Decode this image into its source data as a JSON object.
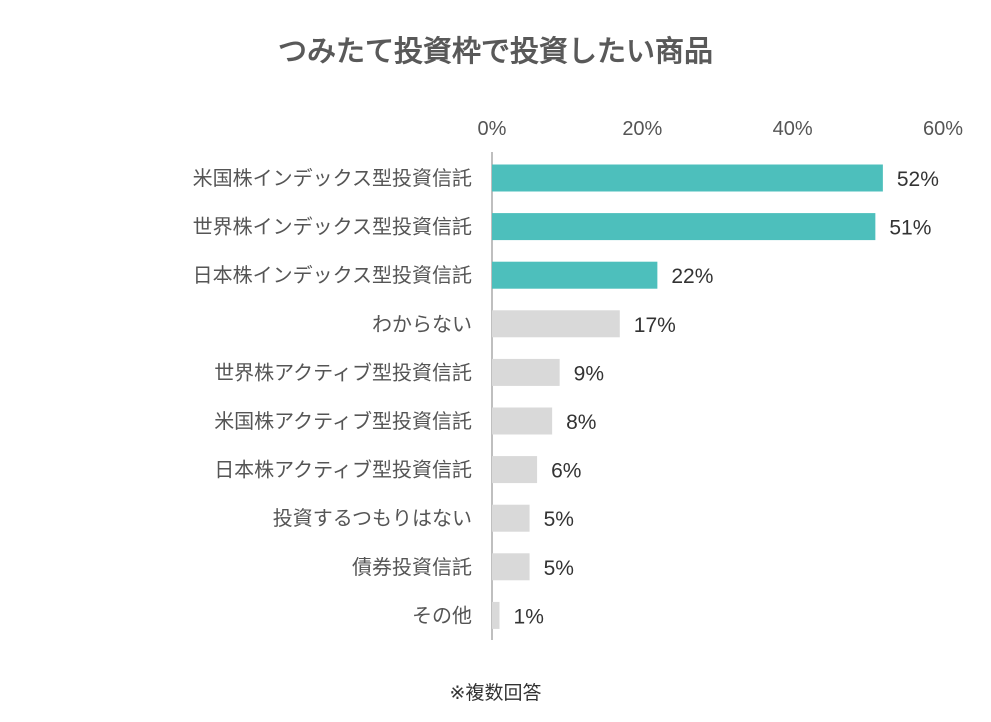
{
  "chart_data": {
    "type": "bar",
    "orientation": "horizontal",
    "title": "つみたて投資枠で投資したい商品",
    "categories": [
      "米国株インデックス型投資信託",
      "世界株インデックス型投資信託",
      "日本株インデックス型投資信託",
      "わからない",
      "世界株アクティブ型投資信託",
      "米国株アクティブ型投資信託",
      "日本株アクティブ型投資信託",
      "投資するつもりはない",
      "債券投資信託",
      "その他"
    ],
    "values": [
      52,
      51,
      22,
      17,
      9,
      8,
      6,
      5,
      5,
      1
    ],
    "value_labels": [
      "52%",
      "51%",
      "22%",
      "17%",
      "9%",
      "8%",
      "6%",
      "5%",
      "5%",
      "1%"
    ],
    "x_ticks": [
      "0%",
      "20%",
      "40%",
      "60%"
    ],
    "x_tick_values": [
      0,
      20,
      40,
      60
    ],
    "xlim": [
      0,
      60
    ],
    "xaxis_position": "top",
    "grid": false,
    "colors": {
      "highlight": "#4dbfbc",
      "default": "#d9d9d9",
      "axis": "#bfbfbf"
    },
    "highlight_count": 3,
    "note": "※複数回答"
  }
}
